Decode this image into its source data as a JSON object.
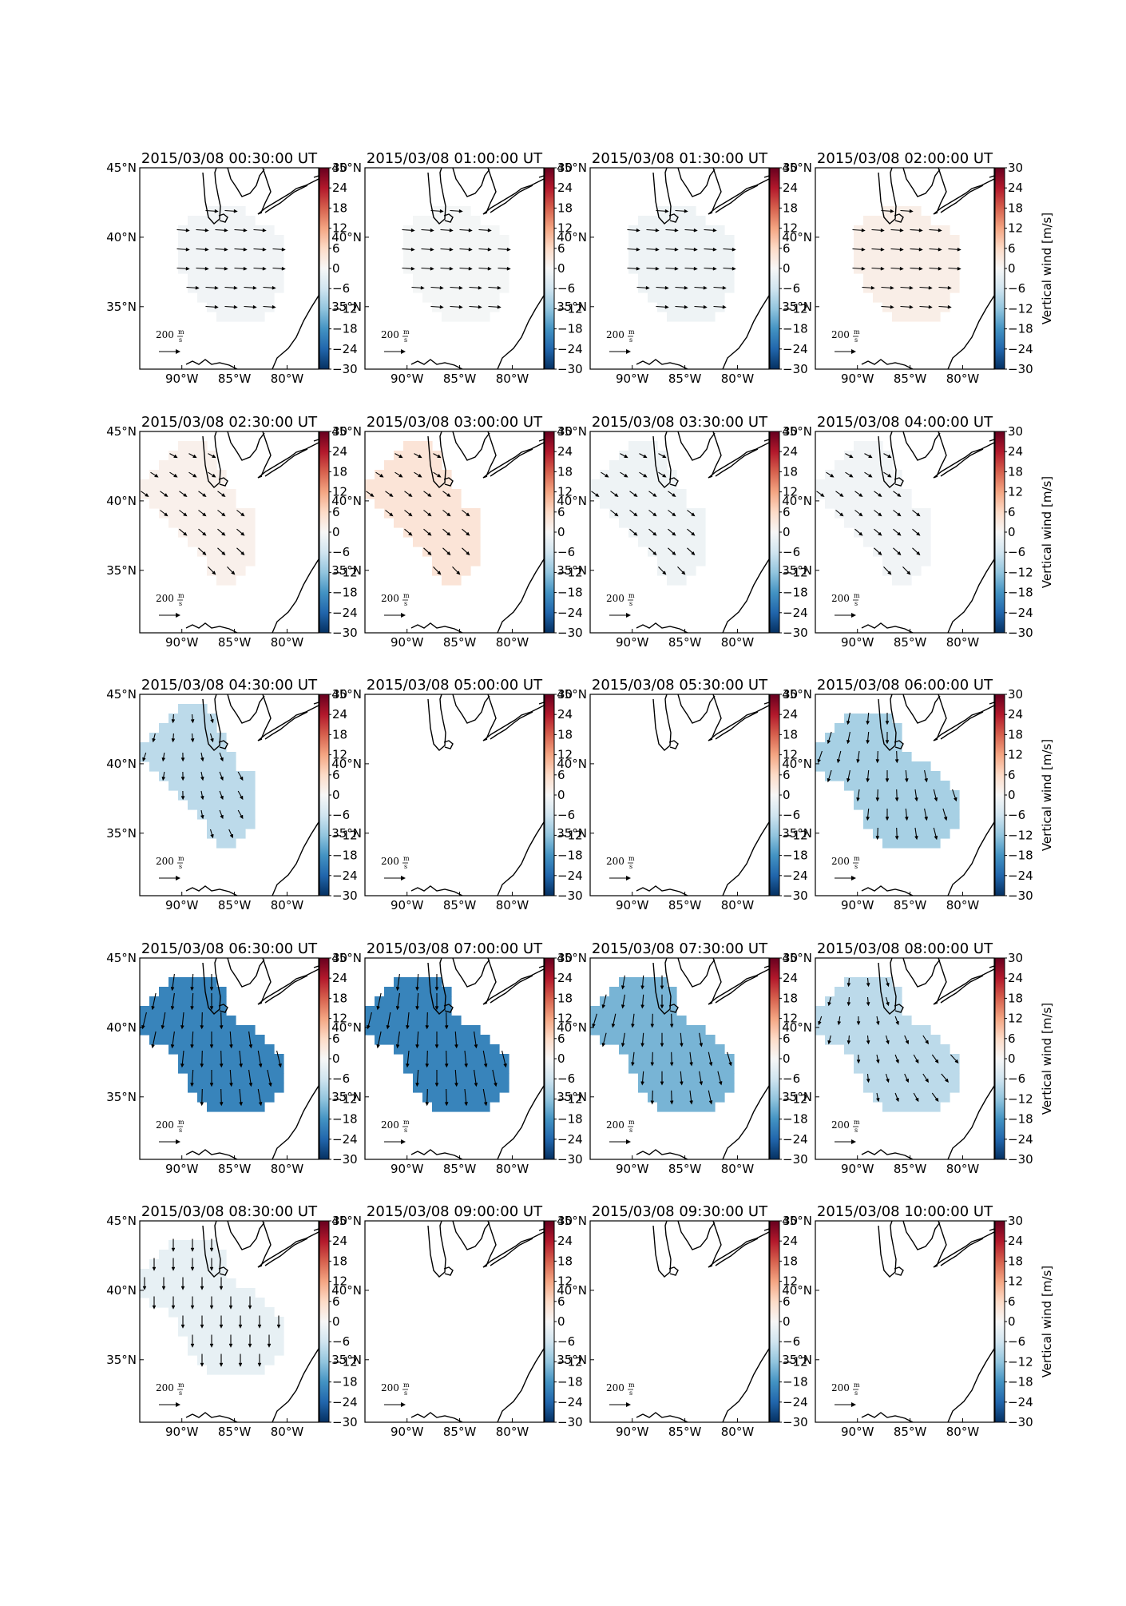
{
  "chart_data": {
    "type": "heatmap",
    "layout": {
      "rows": 5,
      "cols": 4
    },
    "colorbar": {
      "ticks": [
        30,
        24,
        18,
        12,
        6,
        0,
        -6,
        -12,
        -18,
        -24,
        -30
      ],
      "range": [
        -30,
        30
      ],
      "label": "Vertical wind [m/s]",
      "colormap": "RdBu_r"
    },
    "axes": {
      "x_ticks": [
        "90°W",
        "85°W",
        "80°W"
      ],
      "y_ticks": [
        "45°N",
        "40°N",
        "35°N"
      ],
      "lon_range": [
        -94,
        -77
      ],
      "lat_range": [
        30.5,
        45
      ]
    },
    "reference_arrow": {
      "value": 200,
      "label": "200",
      "unit_num": "m",
      "unit_den": "s"
    },
    "panels": [
      {
        "title": "2015/03/08 00:30:00 UT",
        "shape": "A",
        "value": -1
      },
      {
        "title": "2015/03/08 01:00:00 UT",
        "shape": "A",
        "value": -0.5
      },
      {
        "title": "2015/03/08 01:30:00 UT",
        "shape": "A",
        "value": -1.5
      },
      {
        "title": "2015/03/08 02:00:00 UT",
        "shape": "A",
        "value": 2
      },
      {
        "title": "2015/03/08 02:30:00 UT",
        "shape": "B",
        "value": 1.5
      },
      {
        "title": "2015/03/08 03:00:00 UT",
        "shape": "B",
        "value": 4
      },
      {
        "title": "2015/03/08 03:30:00 UT",
        "shape": "B",
        "value": -1.5
      },
      {
        "title": "2015/03/08 04:00:00 UT",
        "shape": "B",
        "value": -1
      },
      {
        "title": "2015/03/08 04:30:00 UT",
        "shape": "B",
        "value": -8
      },
      {
        "title": "2015/03/08 05:00:00 UT",
        "shape": "none",
        "value": 0
      },
      {
        "title": "2015/03/08 05:30:00 UT",
        "shape": "none",
        "value": 0
      },
      {
        "title": "2015/03/08 06:00:00 UT",
        "shape": "C",
        "value": -10
      },
      {
        "title": "2015/03/08 06:30:00 UT",
        "shape": "C",
        "value": -20
      },
      {
        "title": "2015/03/08 07:00:00 UT",
        "shape": "C",
        "value": -20
      },
      {
        "title": "2015/03/08 07:30:00 UT",
        "shape": "C",
        "value": -14
      },
      {
        "title": "2015/03/08 08:00:00 UT",
        "shape": "C",
        "value": -8
      },
      {
        "title": "2015/03/08 08:30:00 UT",
        "shape": "C",
        "value": -2.5
      },
      {
        "title": "2015/03/08 09:00:00 UT",
        "shape": "none",
        "value": 0
      },
      {
        "title": "2015/03/08 09:30:00 UT",
        "shape": "none",
        "value": 0
      },
      {
        "title": "2015/03/08 10:00:00 UT",
        "shape": "none",
        "value": 0
      }
    ]
  }
}
